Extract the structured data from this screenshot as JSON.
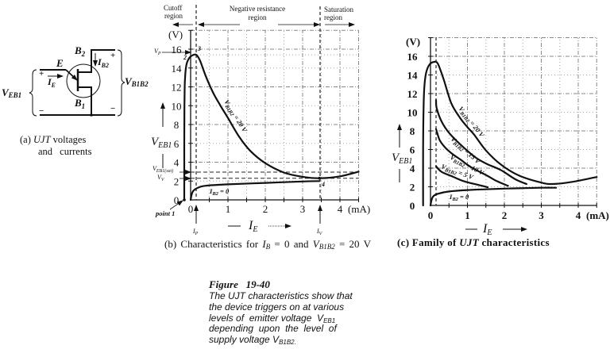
{
  "panel_a": {
    "e": "E",
    "b2": {
      "main": "B",
      "sub": "2"
    },
    "b1": {
      "main": "B",
      "sub": "1"
    },
    "ib2": {
      "main": "I",
      "sub": "B2"
    },
    "ie": {
      "main": "I",
      "sub": "E"
    },
    "veb1": {
      "main": "V",
      "sub": "EB1"
    },
    "vb1b2": {
      "main": "V",
      "sub": "B1B2"
    },
    "plus": "+",
    "minus": "−",
    "caption": {
      "prefix": "(a) ",
      "ujt": "UJT",
      "line1_rest": " voltages",
      "line2": "and currents"
    }
  },
  "panel_b": {
    "regions": {
      "cutoff": [
        "Cutoff",
        "region"
      ],
      "negative": [
        "Negative resistance",
        "region"
      ],
      "saturation": [
        "Saturation",
        "region"
      ]
    },
    "y_unit": "(V)",
    "x_unit": "(mA)",
    "vp": {
      "main": "V",
      "sub": "P"
    },
    "veb1_sat": {
      "main": "V",
      "sub": "EB1(sat)"
    },
    "vv": {
      "main": "V",
      "sub": "V"
    },
    "ylabel": {
      "main": "V",
      "sub": "EB1"
    },
    "xlabel": {
      "main": "I",
      "sub": "E"
    },
    "ip": {
      "main": "I",
      "sub": "P"
    },
    "iv": {
      "main": "I",
      "sub": "V"
    },
    "point1": "point 1",
    "pt2": "2",
    "pt3": "3",
    "pt4": "4",
    "curve_label": {
      "main": "V",
      "sub": "B1B2",
      "rest": " = 20 V"
    },
    "ib2_label": {
      "main": "I",
      "sub": "B2",
      "rest": " = 0"
    },
    "caption": {
      "prefix": "(b)  Characteristics  for  ",
      "ib": {
        "main": "I",
        "sub": "B"
      },
      "mid": " = 0 and ",
      "vb": {
        "main": "V",
        "sub": "B1B2"
      },
      "suffix": " = 20 V"
    }
  },
  "panel_c": {
    "y_unit": "(V)",
    "x_unit": "(mA)",
    "ylabel": {
      "main": "V",
      "sub": "EB1"
    },
    "xlabel": {
      "main": "I",
      "sub": "E"
    },
    "labels": {
      "v20": {
        "main": "V",
        "sub": "B1B2",
        "rest": " = 20 V"
      },
      "v15": {
        "main": "V",
        "sub": "B1B2",
        "rest": " = 15 V"
      },
      "v10": {
        "main": "V",
        "sub": "B1B2",
        "rest": " = 10 V"
      },
      "v5": {
        "main": "V",
        "sub": "B1B2",
        "rest": " = 5 V"
      },
      "ib2": {
        "main": "I",
        "sub": "B2",
        "rest": " = 0"
      }
    },
    "caption": {
      "prefix": "(c) Family of ",
      "ujt": "UJT",
      "suffix": " characteristics"
    }
  },
  "figure": {
    "label": "Figure   19-40",
    "line1": "The UJT characteristics show that",
    "line2": "the device triggers on at various",
    "line3": {
      "text": "levels of  emitter voltage  V",
      "sub": "EB1"
    },
    "line4": "depending  upon  the  level  of",
    "line5": {
      "text": "supply voltage V",
      "sub": "B1B2",
      "end": "."
    }
  },
  "chart_data": [
    {
      "id": "b",
      "type": "line",
      "title": "(b) Characteristics for IB = 0 and VB1B2 = 20 V",
      "xlabel": "IE",
      "ylabel": "VEB1",
      "x_unit": "mA",
      "y_unit": "V",
      "xlim": [
        0,
        4.5
      ],
      "ylim": [
        0,
        18
      ],
      "x_ticks": [
        0,
        1,
        2,
        3,
        4
      ],
      "y_ticks": [
        0,
        2,
        4,
        6,
        8,
        10,
        12,
        14,
        16
      ],
      "grid": true,
      "regions": [
        "Cutoff region",
        "Negative resistance region",
        "Saturation region"
      ],
      "reference_lines": {
        "VP": 15.4,
        "VEB1(sat)": 2.95,
        "VV": 2.3,
        "IP": 0.15,
        "IV": 3.45
      },
      "annotations": {
        "point 1": [
          -0.17,
          0
        ],
        "2": [
          -0.05,
          15.0
        ],
        "3": [
          0.15,
          15.4
        ],
        "4": [
          3.45,
          2.3
        ]
      },
      "series": [
        {
          "name": "VB1B2 = 20 V",
          "points": [
            [
              -0.17,
              0
            ],
            [
              -0.17,
              6
            ],
            [
              -0.165,
              10
            ],
            [
              -0.155,
              12.5
            ],
            [
              -0.12,
              14.2
            ],
            [
              -0.05,
              15.0
            ],
            [
              0.05,
              15.35
            ],
            [
              0.15,
              15.4
            ],
            [
              0.25,
              14.8
            ],
            [
              0.4,
              13.2
            ],
            [
              0.6,
              11.4
            ],
            [
              0.8,
              10.0
            ],
            [
              1.0,
              8.7
            ],
            [
              1.3,
              6.7
            ],
            [
              1.6,
              5.2
            ],
            [
              2.0,
              3.9
            ],
            [
              2.5,
              2.9
            ],
            [
              3.0,
              2.45
            ],
            [
              3.45,
              2.3
            ],
            [
              4.0,
              2.5
            ],
            [
              4.5,
              3.0
            ]
          ]
        },
        {
          "name": "IB2 = 0",
          "points": [
            [
              0,
              0
            ],
            [
              0.03,
              0.6
            ],
            [
              0.08,
              1.0
            ],
            [
              0.2,
              1.3
            ],
            [
              0.4,
              1.5
            ],
            [
              1.0,
              1.65
            ],
            [
              2.0,
              1.8
            ],
            [
              3.0,
              1.95
            ],
            [
              3.45,
              2.0
            ]
          ]
        }
      ]
    },
    {
      "id": "c",
      "type": "line",
      "title": "(c) Family of UJT characteristics",
      "xlabel": "IE",
      "ylabel": "VEB1",
      "x_unit": "mA",
      "y_unit": "V",
      "xlim": [
        0,
        4.5
      ],
      "ylim": [
        0,
        18
      ],
      "x_ticks": [
        0,
        1,
        2,
        3,
        4
      ],
      "y_ticks": [
        0,
        2,
        4,
        6,
        8,
        10,
        12,
        14,
        16
      ],
      "grid": true,
      "reference_lines": {
        "IP": 0.15
      },
      "series": [
        {
          "name": "VB1B2 = 20 V",
          "points": [
            [
              -0.2,
              0
            ],
            [
              -0.2,
              6
            ],
            [
              -0.19,
              10
            ],
            [
              -0.17,
              12.5
            ],
            [
              -0.12,
              14.2
            ],
            [
              -0.03,
              15.1
            ],
            [
              0.1,
              15.4
            ],
            [
              0.2,
              15.2
            ],
            [
              0.35,
              13.6
            ],
            [
              0.56,
              11.0
            ],
            [
              0.8,
              9.4
            ],
            [
              1.0,
              8.4
            ],
            [
              1.18,
              7.6
            ],
            [
              1.5,
              5.9
            ],
            [
              1.9,
              4.4
            ],
            [
              2.4,
              3.2
            ],
            [
              3.0,
              2.45
            ],
            [
              3.3,
              2.3
            ],
            [
              3.8,
              2.5
            ],
            [
              4.5,
              3.05
            ]
          ]
        },
        {
          "name": "VB1B2 = 15 V",
          "points": [
            [
              0.15,
              11.3
            ],
            [
              0.17,
              10.4
            ],
            [
              0.3,
              9.0
            ],
            [
              0.5,
              7.8
            ],
            [
              0.82,
              6.5
            ],
            [
              1.2,
              5.2
            ],
            [
              1.5,
              4.5
            ],
            [
              1.9,
              3.8
            ],
            [
              2.3,
              2.8
            ],
            [
              2.6,
              2.3
            ]
          ]
        },
        {
          "name": "VB1B2 = 10 V",
          "points": [
            [
              0.15,
              8.2
            ],
            [
              0.25,
              7.0
            ],
            [
              0.4,
              6.2
            ],
            [
              0.6,
              5.5
            ],
            [
              0.82,
              4.9
            ],
            [
              1.1,
              4.1
            ],
            [
              1.53,
              3.2
            ],
            [
              1.8,
              2.6
            ],
            [
              2.1,
              2.1
            ]
          ]
        },
        {
          "name": "VB1B2 = 5 V",
          "points": [
            [
              0.15,
              4.2
            ],
            [
              0.3,
              3.6
            ],
            [
              0.6,
              3.1
            ],
            [
              0.9,
              2.6
            ],
            [
              1.3,
              2.2
            ],
            [
              1.55,
              1.95
            ]
          ]
        },
        {
          "name": "IB2 = 0",
          "points": [
            [
              0,
              0
            ],
            [
              0.03,
              0.6
            ],
            [
              0.08,
              1.0
            ],
            [
              0.2,
              1.25
            ],
            [
              0.5,
              1.5
            ],
            [
              1.0,
              1.65
            ],
            [
              2.0,
              1.8
            ],
            [
              3.0,
              1.9
            ],
            [
              3.4,
              1.9
            ]
          ]
        }
      ]
    }
  ]
}
